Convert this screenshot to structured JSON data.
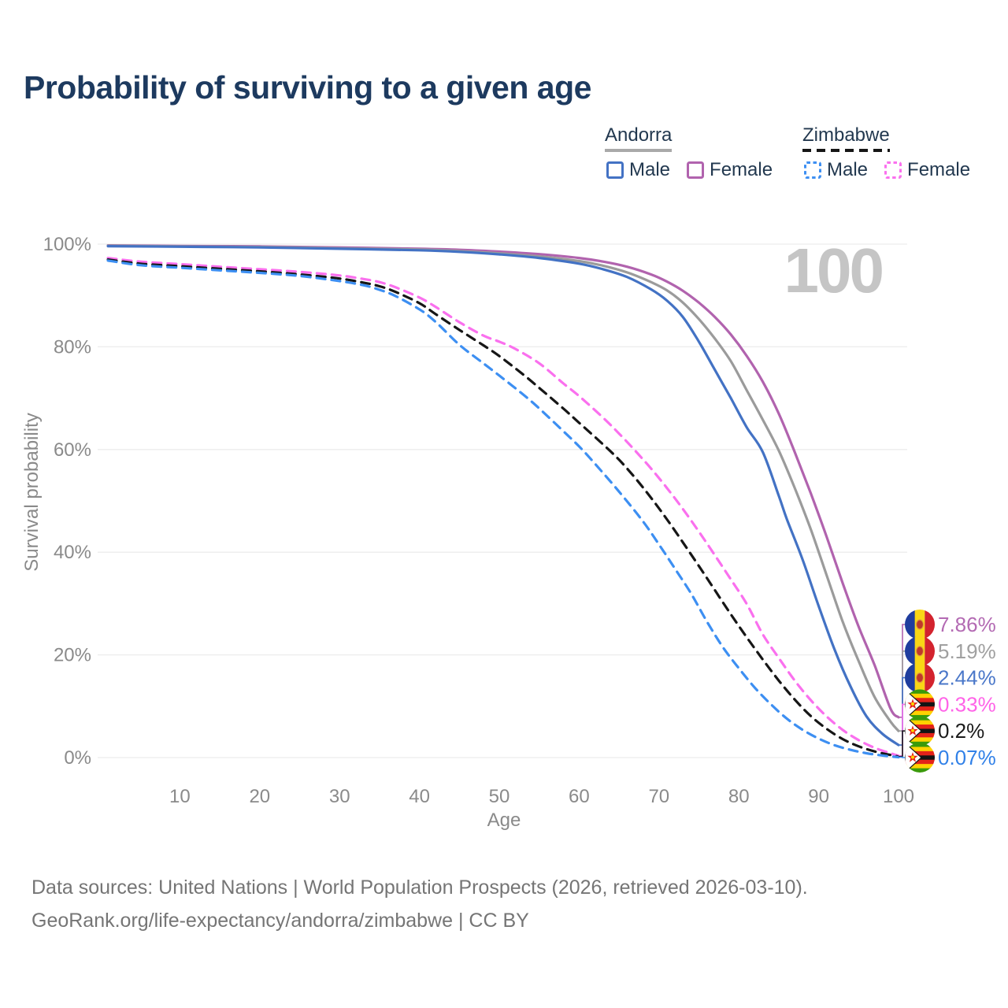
{
  "title": "Probability of surviving to a given age",
  "legend": {
    "groups": [
      {
        "label": "Andorra",
        "line_style": "solid",
        "line_color": "#a9a9a9",
        "items": [
          {
            "label": "Male",
            "color": "#4372c4",
            "dashed": false
          },
          {
            "label": "Female",
            "color": "#b163ae",
            "dashed": false
          }
        ]
      },
      {
        "label": "Zimbabwe",
        "line_style": "dashed",
        "line_color": "#161616",
        "items": [
          {
            "label": "Male",
            "color": "#3d8ff2",
            "dashed": true
          },
          {
            "label": "Female",
            "color": "#fa70ee",
            "dashed": true
          }
        ]
      }
    ]
  },
  "chart_data": {
    "type": "line",
    "title": "Probability of surviving to a given age",
    "xlabel": "Age",
    "ylabel": "Survival probability",
    "xlim": [
      0,
      100
    ],
    "ylim": [
      0,
      100
    ],
    "x_ticks": [
      10,
      20,
      30,
      40,
      50,
      60,
      70,
      80,
      90,
      100
    ],
    "y_ticks": [
      0,
      20,
      40,
      60,
      80,
      100
    ],
    "y_tick_suffix": "%",
    "grid": "horizontal",
    "annotation": "100",
    "legend_position": "top-right",
    "series": [
      {
        "id": "andorra-female",
        "name": "Andorra Female",
        "country": "Andorra",
        "sex": "Female",
        "color": "#b163ae",
        "label_color": "#b36ab3",
        "dashed": false,
        "flag": "andorra",
        "end_label": "7.86%",
        "end_value": 7.86,
        "points": [
          [
            1,
            99.75
          ],
          [
            10,
            99.65
          ],
          [
            20,
            99.55
          ],
          [
            30,
            99.35
          ],
          [
            40,
            99.1
          ],
          [
            45,
            98.9
          ],
          [
            50,
            98.55
          ],
          [
            55,
            98.05
          ],
          [
            60,
            97.3
          ],
          [
            63,
            96.6
          ],
          [
            66,
            95.6
          ],
          [
            69,
            94.1
          ],
          [
            71,
            92.7
          ],
          [
            73,
            90.9
          ],
          [
            75,
            88.6
          ],
          [
            77,
            85.8
          ],
          [
            79,
            82.4
          ],
          [
            81,
            78.2
          ],
          [
            83,
            73.2
          ],
          [
            85,
            67.0
          ],
          [
            87,
            59.5
          ],
          [
            89,
            51.5
          ],
          [
            91,
            43.0
          ],
          [
            93,
            34.0
          ],
          [
            95,
            25.5
          ],
          [
            97,
            18.0
          ],
          [
            99,
            9.5
          ],
          [
            100,
            7.86
          ]
        ]
      },
      {
        "id": "andorra-both",
        "name": "Andorra Both sexes",
        "country": "Andorra",
        "sex": "Both",
        "color": "#9b9b9b",
        "label_color": "#a0a0a0",
        "dashed": false,
        "flag": "andorra",
        "end_label": "5.19%",
        "end_value": 5.19,
        "points": [
          [
            1,
            99.7
          ],
          [
            10,
            99.55
          ],
          [
            20,
            99.45
          ],
          [
            30,
            99.2
          ],
          [
            40,
            98.95
          ],
          [
            45,
            98.65
          ],
          [
            50,
            98.2
          ],
          [
            55,
            97.6
          ],
          [
            60,
            96.7
          ],
          [
            63,
            95.8
          ],
          [
            66,
            94.5
          ],
          [
            69,
            92.6
          ],
          [
            71,
            91.0
          ],
          [
            73,
            88.6
          ],
          [
            75,
            85.4
          ],
          [
            77,
            81.6
          ],
          [
            79,
            77.2
          ],
          [
            81,
            71.5
          ],
          [
            83,
            65.8
          ],
          [
            85,
            59.8
          ],
          [
            87,
            52.5
          ],
          [
            89,
            44.5
          ],
          [
            91,
            35.5
          ],
          [
            93,
            26.5
          ],
          [
            95,
            18.8
          ],
          [
            97,
            11.8
          ],
          [
            99,
            7.0
          ],
          [
            100,
            5.19
          ]
        ]
      },
      {
        "id": "andorra-male",
        "name": "Andorra Male",
        "country": "Andorra",
        "sex": "Male",
        "color": "#4372c4",
        "label_color": "#4a77c9",
        "dashed": false,
        "flag": "andorra",
        "end_label": "2.44%",
        "end_value": 2.44,
        "points": [
          [
            1,
            99.6
          ],
          [
            10,
            99.5
          ],
          [
            20,
            99.35
          ],
          [
            30,
            99.1
          ],
          [
            40,
            98.8
          ],
          [
            45,
            98.5
          ],
          [
            50,
            98.0
          ],
          [
            55,
            97.3
          ],
          [
            60,
            96.2
          ],
          [
            63,
            95.1
          ],
          [
            66,
            93.6
          ],
          [
            69,
            91.2
          ],
          [
            71,
            89.0
          ],
          [
            73,
            85.8
          ],
          [
            75,
            81.0
          ],
          [
            77,
            75.5
          ],
          [
            79,
            70.0
          ],
          [
            81,
            64.3
          ],
          [
            83,
            59.5
          ],
          [
            85,
            51.0
          ],
          [
            86,
            46.5
          ],
          [
            88,
            38.5
          ],
          [
            90,
            29.5
          ],
          [
            92,
            21.0
          ],
          [
            94,
            13.8
          ],
          [
            96,
            8.0
          ],
          [
            98,
            4.6
          ],
          [
            100,
            2.44
          ]
        ]
      },
      {
        "id": "zimbabwe-female",
        "name": "Zimbabwe Female",
        "country": "Zimbabwe",
        "sex": "Female",
        "color": "#fa70ee",
        "label_color": "#ff63e8",
        "dashed": true,
        "flag": "zimbabwe",
        "end_label": "0.33%",
        "end_value": 0.33,
        "points": [
          [
            1,
            97.3
          ],
          [
            5,
            96.6
          ],
          [
            10,
            96.1
          ],
          [
            15,
            95.6
          ],
          [
            20,
            95.1
          ],
          [
            25,
            94.6
          ],
          [
            30,
            93.9
          ],
          [
            33,
            93.2
          ],
          [
            35,
            92.6
          ],
          [
            37,
            91.6
          ],
          [
            40,
            89.6
          ],
          [
            42,
            87.8
          ],
          [
            45,
            84.8
          ],
          [
            48,
            82.2
          ],
          [
            50,
            81.0
          ],
          [
            52,
            79.6
          ],
          [
            55,
            76.8
          ],
          [
            58,
            72.9
          ],
          [
            60,
            70.4
          ],
          [
            63,
            66.2
          ],
          [
            65,
            63.1
          ],
          [
            67,
            59.8
          ],
          [
            69,
            56.3
          ],
          [
            71,
            52.5
          ],
          [
            73,
            48.4
          ],
          [
            75,
            44.0
          ],
          [
            77,
            39.4
          ],
          [
            79,
            34.7
          ],
          [
            81,
            29.9
          ],
          [
            83,
            24.0
          ],
          [
            85,
            19.4
          ],
          [
            87,
            15.0
          ],
          [
            89,
            11.2
          ],
          [
            91,
            8.0
          ],
          [
            93,
            5.4
          ],
          [
            95,
            3.4
          ],
          [
            97,
            1.9
          ],
          [
            99,
            0.85
          ],
          [
            100,
            0.33
          ]
        ]
      },
      {
        "id": "zimbabwe-both",
        "name": "Zimbabwe Both sexes",
        "country": "Zimbabwe",
        "sex": "Both",
        "color": "#161616",
        "label_color": "#1a1a1a",
        "dashed": true,
        "flag": "zimbabwe",
        "end_label": "0.2%",
        "end_value": 0.2,
        "points": [
          [
            1,
            97.0
          ],
          [
            5,
            96.2
          ],
          [
            10,
            95.7
          ],
          [
            15,
            95.2
          ],
          [
            20,
            94.7
          ],
          [
            25,
            94.1
          ],
          [
            30,
            93.3
          ],
          [
            33,
            92.5
          ],
          [
            35,
            91.8
          ],
          [
            37,
            90.7
          ],
          [
            40,
            88.5
          ],
          [
            42,
            86.4
          ],
          [
            45,
            83.3
          ],
          [
            48,
            80.3
          ],
          [
            50,
            78.2
          ],
          [
            53,
            74.6
          ],
          [
            55,
            72.0
          ],
          [
            58,
            68.0
          ],
          [
            60,
            65.2
          ],
          [
            63,
            61.0
          ],
          [
            65,
            58.0
          ],
          [
            67,
            54.5
          ],
          [
            69,
            50.6
          ],
          [
            71,
            46.4
          ],
          [
            73,
            41.9
          ],
          [
            75,
            37.3
          ],
          [
            77,
            32.6
          ],
          [
            79,
            27.9
          ],
          [
            81,
            23.4
          ],
          [
            83,
            19.1
          ],
          [
            85,
            15.0
          ],
          [
            87,
            11.3
          ],
          [
            89,
            8.1
          ],
          [
            91,
            5.6
          ],
          [
            93,
            3.6
          ],
          [
            95,
            2.2
          ],
          [
            97,
            1.2
          ],
          [
            99,
            0.5
          ],
          [
            100,
            0.2
          ]
        ]
      },
      {
        "id": "zimbabwe-male",
        "name": "Zimbabwe Male",
        "country": "Zimbabwe",
        "sex": "Male",
        "color": "#3d8ff2",
        "label_color": "#3181e8",
        "dashed": true,
        "flag": "zimbabwe",
        "end_label": "0.07%",
        "end_value": 0.07,
        "points": [
          [
            1,
            96.8
          ],
          [
            5,
            95.9
          ],
          [
            10,
            95.4
          ],
          [
            15,
            94.9
          ],
          [
            20,
            94.4
          ],
          [
            25,
            93.8
          ],
          [
            30,
            92.8
          ],
          [
            33,
            92.0
          ],
          [
            35,
            91.1
          ],
          [
            37,
            89.9
          ],
          [
            40,
            87.3
          ],
          [
            42,
            84.9
          ],
          [
            45,
            80.4
          ],
          [
            48,
            76.8
          ],
          [
            50,
            74.4
          ],
          [
            53,
            70.7
          ],
          [
            55,
            68.0
          ],
          [
            58,
            63.6
          ],
          [
            60,
            60.6
          ],
          [
            62,
            57.2
          ],
          [
            65,
            51.8
          ],
          [
            68,
            46.0
          ],
          [
            70,
            41.5
          ],
          [
            72,
            36.8
          ],
          [
            74,
            32.0
          ],
          [
            76,
            26.5
          ],
          [
            78,
            21.5
          ],
          [
            80,
            17.4
          ],
          [
            82,
            13.6
          ],
          [
            84,
            10.4
          ],
          [
            86,
            7.6
          ],
          [
            88,
            5.4
          ],
          [
            90,
            3.7
          ],
          [
            92,
            2.4
          ],
          [
            94,
            1.5
          ],
          [
            96,
            0.85
          ],
          [
            98,
            0.4
          ],
          [
            100,
            0.07
          ]
        ]
      }
    ]
  },
  "footer": {
    "line1": "Data sources: United Nations | World Population Prospects (2026, retrieved 2026-03-10).",
    "line2": "GeoRank.org/life-expectancy/andorra/zimbabwe | CC BY"
  },
  "colors": {
    "title_text": "#1d3a5f",
    "axis_text": "#8a8a8a",
    "gridline": "#ececec",
    "watermark": "#c5c5c5",
    "footer_text": "#757575"
  }
}
